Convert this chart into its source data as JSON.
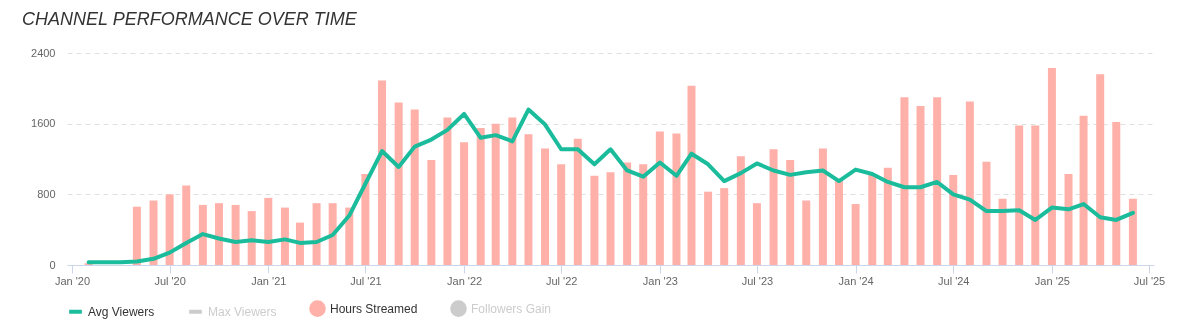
{
  "chart_data": {
    "type": "bar",
    "title": "CHANNEL PERFORMANCE OVER TIME",
    "x": [
      "2020-02",
      "2020-03",
      "2020-04",
      "2020-05",
      "2020-06",
      "2020-07",
      "2020-08",
      "2020-09",
      "2020-10",
      "2020-11",
      "2020-12",
      "2021-01",
      "2021-02",
      "2021-03",
      "2021-04",
      "2021-05",
      "2021-06",
      "2021-07",
      "2021-08",
      "2021-09",
      "2021-10",
      "2021-11",
      "2021-12",
      "2022-01",
      "2022-02",
      "2022-03",
      "2022-04",
      "2022-05",
      "2022-06",
      "2022-07",
      "2022-08",
      "2022-09",
      "2022-10",
      "2022-11",
      "2022-12",
      "2023-01",
      "2023-02",
      "2023-03",
      "2023-04",
      "2023-05",
      "2023-06",
      "2023-07",
      "2023-08",
      "2023-09",
      "2023-10",
      "2023-11",
      "2023-12",
      "2024-01",
      "2024-02",
      "2024-03",
      "2024-04",
      "2024-05",
      "2024-06",
      "2024-07",
      "2024-08",
      "2024-09",
      "2024-10",
      "2024-11",
      "2024-12",
      "2025-01",
      "2025-02",
      "2025-03",
      "2025-04",
      "2025-05",
      "2025-06"
    ],
    "series": [
      {
        "name": "Avg Viewers",
        "type": "line",
        "color": "#1abc9c",
        "values": [
          30,
          30,
          30,
          40,
          70,
          140,
          250,
          350,
          300,
          260,
          280,
          260,
          290,
          250,
          260,
          340,
          560,
          920,
          1290,
          1110,
          1340,
          1420,
          1530,
          1710,
          1440,
          1470,
          1400,
          1760,
          1590,
          1310,
          1310,
          1140,
          1310,
          1070,
          1000,
          1160,
          1010,
          1260,
          1140,
          950,
          1040,
          1150,
          1070,
          1020,
          1050,
          1070,
          950,
          1080,
          1030,
          940,
          880,
          880,
          940,
          800,
          740,
          610,
          610,
          620,
          510,
          650,
          630,
          690,
          540,
          510,
          590
        ]
      },
      {
        "name": "Max Viewers",
        "type": "line",
        "color": "#cccccc",
        "values": [
          null,
          null,
          null,
          null,
          null,
          null,
          null,
          null,
          null,
          null,
          null,
          null,
          null,
          null,
          null,
          null,
          null,
          null,
          null,
          null,
          null,
          null,
          null,
          null,
          null,
          null,
          null,
          null,
          null,
          null,
          null,
          null,
          null,
          null,
          null,
          null,
          null,
          null,
          null,
          null,
          null,
          null,
          null,
          null,
          null,
          null,
          null,
          null,
          null,
          null,
          null,
          null,
          null,
          null,
          null,
          null,
          null,
          null,
          null,
          null,
          null,
          null,
          null,
          null,
          null
        ]
      },
      {
        "name": "Hours Streamed",
        "type": "bar",
        "color": "#ffb1a9",
        "values": [
          20,
          null,
          null,
          660,
          730,
          800,
          900,
          680,
          700,
          680,
          610,
          760,
          650,
          480,
          700,
          700,
          650,
          1030,
          2090,
          1840,
          1760,
          1190,
          1670,
          1390,
          1550,
          1600,
          1670,
          1480,
          1320,
          1140,
          1430,
          1010,
          1050,
          1160,
          1140,
          1510,
          1490,
          2030,
          830,
          870,
          1230,
          700,
          1310,
          1190,
          730,
          1320,
          950,
          690,
          1030,
          1100,
          1900,
          1800,
          1900,
          1020,
          1850,
          1170,
          750,
          1580,
          1580,
          2230,
          1030,
          1690,
          2160,
          1620,
          750
        ]
      },
      {
        "name": "Followers Gain",
        "type": "bar",
        "color": "#cccccc",
        "values": [
          null,
          null,
          null,
          null,
          null,
          null,
          null,
          null,
          null,
          null,
          null,
          null,
          null,
          null,
          null,
          null,
          null,
          null,
          null,
          null,
          null,
          null,
          null,
          null,
          null,
          null,
          null,
          null,
          null,
          null,
          null,
          null,
          null,
          null,
          null,
          null,
          null,
          null,
          null,
          null,
          null,
          null,
          null,
          null,
          null,
          null,
          null,
          null,
          null,
          null,
          null,
          null,
          null,
          null,
          null,
          null,
          null,
          null,
          null,
          null,
          null,
          null,
          null,
          null,
          null
        ]
      }
    ],
    "xlim": [
      "2020-01",
      "2025-07"
    ],
    "xticks": [
      {
        "value": "2020-01",
        "label": "Jan '20"
      },
      {
        "value": "2020-07",
        "label": "Jul '20"
      },
      {
        "value": "2021-01",
        "label": "Jan '21"
      },
      {
        "value": "2021-07",
        "label": "Jul '21"
      },
      {
        "value": "2022-01",
        "label": "Jan '22"
      },
      {
        "value": "2022-07",
        "label": "Jul '22"
      },
      {
        "value": "2023-01",
        "label": "Jan '23"
      },
      {
        "value": "2023-07",
        "label": "Jul '23"
      },
      {
        "value": "2024-01",
        "label": "Jan '24"
      },
      {
        "value": "2024-07",
        "label": "Jul '24"
      },
      {
        "value": "2025-01",
        "label": "Jan '25"
      },
      {
        "value": "2025-07",
        "label": "Jul '25"
      }
    ],
    "ylim": [
      0,
      2400
    ],
    "yticks": [
      0,
      800,
      1600,
      2400
    ],
    "grid": "y",
    "legend": "bottom"
  }
}
